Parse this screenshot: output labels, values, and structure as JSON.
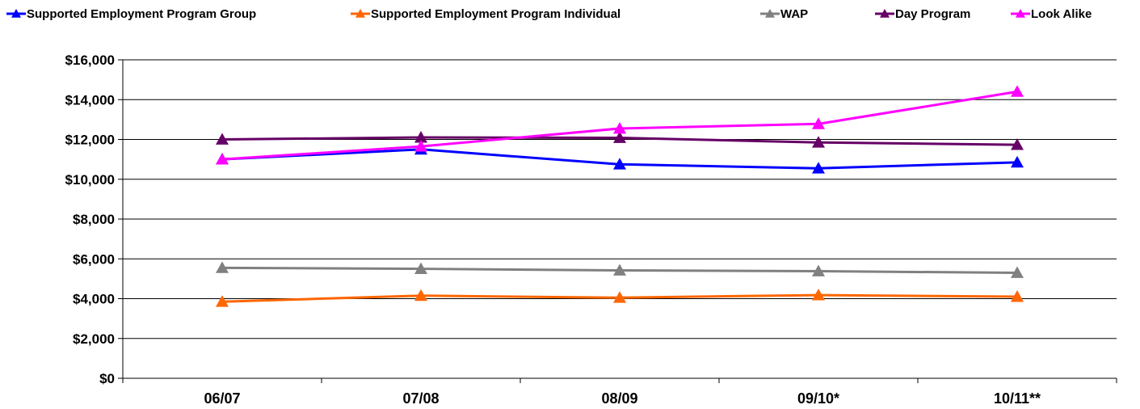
{
  "chart_data": {
    "type": "line",
    "categories": [
      "06/07",
      "07/08",
      "08/09",
      "09/10*",
      "10/11**"
    ],
    "y_tick_labels": [
      "$0",
      "$2,000",
      "$4,000",
      "$6,000",
      "$8,000",
      "$10,000",
      "$12,000",
      "$14,000",
      "$16,000"
    ],
    "ylim": [
      0,
      16000
    ],
    "y_tick_step": 2000,
    "grid": true,
    "legend_position": "top",
    "marker": "triangle",
    "series": [
      {
        "name": "Supported Employment Program Group",
        "color": "#0000FF",
        "values": [
          11000,
          11500,
          10750,
          10550,
          10850
        ]
      },
      {
        "name": "Supported Employment Program Individual",
        "color": "#FF6600",
        "values": [
          3850,
          4150,
          4050,
          4180,
          4100
        ]
      },
      {
        "name": "WAP",
        "color": "#808080",
        "values": [
          5550,
          5500,
          5420,
          5380,
          5300
        ]
      },
      {
        "name": "Day Program",
        "color": "#660066",
        "values": [
          12000,
          12100,
          12080,
          11850,
          11730
        ]
      },
      {
        "name": "Look Alike",
        "color": "#FF00FF",
        "values": [
          11000,
          11650,
          12550,
          12780,
          14400
        ]
      }
    ]
  }
}
